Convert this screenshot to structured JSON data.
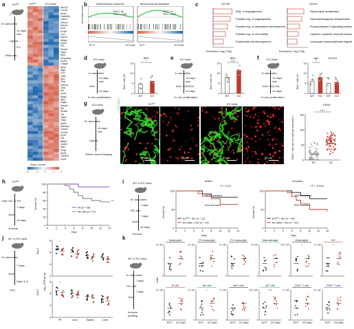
{
  "panels": {
    "a": {
      "label": "a",
      "mouse": "ECᵂᵀ",
      "mouse2": "EC^ΔAlv",
      "steps": [
        "5× tamoxifen",
        "14 days",
        "rest",
        "Ligand",
        "3 h",
        "RNA-seq"
      ],
      "col_headers": [
        "ECᵂᵀ",
        "EC^ΔAlv"
      ],
      "genes": [
        "Abcc12",
        "Cxcl16",
        "Efna1",
        "Gadd45b",
        "Grem1",
        "Hba-a1",
        "Hba-b1",
        "Il1rl1",
        "Kcnk5",
        "Lcn2",
        "Myo10",
        "Nfkbia",
        "Nr4a3",
        "Pf4",
        "Plxna4",
        "Ppbp",
        "Rgs1",
        "Serpina3g",
        "Sox18",
        "Tnfaip3",
        "Aplnr",
        "Aqp1",
        "Ccl2",
        "Cdh5",
        "Egr1",
        "Fosb",
        "Gpnmb",
        "Junb",
        "Kdr",
        "Lyve1",
        "Mmp2",
        "Nid2",
        "Pdgfb",
        "Ramp3",
        "Ret",
        "Slc6a6",
        "Tek",
        "Tgfb2",
        "Thbd",
        "Zfp36",
        "Adamts1",
        "Col4a1",
        "Col4a2",
        "Esm1",
        "Flt1",
        "Igfbp3",
        "Lamb1",
        "Nid1",
        "Plvap",
        "Sparc",
        "Trp53i11",
        "Vwa1"
      ],
      "legend_title": "Row z-score",
      "legend_ticks": [
        "−2",
        "−1",
        "0",
        "1",
        "2"
      ]
    },
    "b": {
      "label": "b",
      "plot1_title": "Inflammatory response",
      "plot1_stats": [
        "NES 1.08",
        "FDR < 0.046"
      ],
      "plot2_title": "Mesenchymal transition",
      "plot2_stats": [
        "NES 1.74",
        "FDR < 0.019"
      ],
      "ylabel": "Enrichment score",
      "x_left": "ECᵂᵀ",
      "x_right": "EC^ΔAlv"
    },
    "c": {
      "label": "c",
      "title1": "GO BP",
      "title2": "KEGG",
      "go_terms": [
        "Reg. of angiogenesis",
        "Positive reg. of angiogenesis",
        "Positive reg. of vasculature development",
        "Positive reg. of cell motility",
        "Endothelial cell development"
      ],
      "kegg_terms": [
        "Glycerolipid metabolism",
        "Glycosaminoglycan biosynthesis",
        "Phospholipase D signalling pathway",
        "Cytokine–cytokine receptor interaction",
        "Leukocyte transendothelial migration"
      ],
      "xlabel": "Enrichment (−log₁₀P adj)",
      "xticks": [
        "0",
        "2",
        "4",
        "6"
      ]
    },
    "d": {
      "label": "d",
      "mouse": "EC^ΔAlv",
      "steps": [
        "1× tamoxifen",
        "14 days",
        "rest",
        "EdU",
        "14 days"
      ],
      "bottom": "In vivo proliferation",
      "title": "BEC",
      "ylabel": "EdU⁺ cells (%)",
      "sig": "*",
      "xcats": [
        "WT",
        "KO"
      ],
      "yticks": [
        "0",
        "5",
        "10",
        "15"
      ]
    },
    "e": {
      "label": "e",
      "mouse": "EC^ΔAlv",
      "steps": [
        "1× tamoxifen",
        "14 days",
        "rest",
        "EdU + VEGFA",
        "14 days"
      ],
      "bottom": "In vivo proliferation",
      "title": "BEC",
      "ylabel": "EdU⁺ cells (%)",
      "sig": "****",
      "xcats": [
        "WT",
        "KO"
      ],
      "yticks": [
        "0",
        "5",
        "10",
        "15"
      ]
    },
    "f": {
      "label": "f",
      "mouse": "EC^ΔAlv",
      "steps": [
        "1× tamoxifen",
        "14 days",
        "rest",
        "EdU + DC101",
        "14 days"
      ],
      "bottom": "In vivo proliferation",
      "title1": "IgG",
      "title2": "DC101",
      "ylabel": "EdU⁺ cells (%)",
      "sig": "*",
      "xcats": [
        "WT",
        "KO",
        "WT",
        "KO"
      ],
      "yticks": [
        "0",
        "5",
        "10",
        "15"
      ]
    },
    "g": {
      "label": "g",
      "mouse": "EC^ΔAlv",
      "steps": [
        "5× tamoxifen",
        "14 days",
        "rest",
        "Ligand"
      ],
      "bottom": "Whole-mount imaging",
      "img_titles": [
        "ECᵂᵀ",
        "EC^ΔAlv"
      ],
      "stain": "CD31 ESM1",
      "scalebars": [
        "50 µm",
        "50 µm",
        "50 µm",
        "50 µm"
      ],
      "chart_title": "ESM1",
      "chart_ylabel": "ESM1⁺ cells per unit vascular area (mm⁻²)",
      "chart_sig": "****",
      "chart_xcats": [
        "WT",
        "KO"
      ]
    },
    "h": {
      "label": "h",
      "mouse": "ECᵂᵀ",
      "steps": [
        "Diet: ISC or PD",
        "7 days",
        "Ypzb",
        "14 days",
        "Survival"
      ],
      "ylabel": "Survival (%)",
      "xlabel": "Days",
      "sig": "**",
      "legend": [
        "PD (n = 28)",
        "ISC diet (n = 27)"
      ],
      "xticks": [
        "0",
        "2",
        "4",
        "6",
        "8",
        "10",
        "12",
        "14"
      ],
      "yticks": [
        "0",
        "20",
        "40",
        "60",
        "80",
        "100"
      ]
    },
    "i": {
      "label": "i",
      "mouse": "WT or EC^ΔAlv",
      "steps": [
        "5× tamoxifen",
        "7 days",
        "ISC diet",
        "7 days",
        "Ypzb",
        "14 days",
        "Survival"
      ],
      "left_title": "Males",
      "left_p": "P = 0.22",
      "left_surv": [
        "10/12 survived",
        "9/14 survived"
      ],
      "left_legend": [
        "ECᵂᵀ + ISC (n = 12)",
        "EC^ΔAlv + ISC (n = 14)"
      ],
      "right_title": "Females",
      "right_p": "*P = 0.046",
      "right_surv": [
        "19/24 survived",
        "9/20 survived"
      ],
      "right_legend": [
        "ECᵂᵀ + ISC (n = 24)",
        "EC^ΔAlv + ISC (n = 20)"
      ],
      "xlabel": "Days",
      "ylabel": "Survival (%)",
      "xticks": [
        "0",
        "2",
        "4",
        "6",
        "8",
        "10",
        "12",
        "14"
      ],
      "yticks": [
        "0",
        "50",
        "100"
      ]
    },
    "j": {
      "label": "j",
      "mouse": "WT or EC^ΔAlv",
      "steps": [
        "5× tamoxifen",
        "7 days",
        "Ypzb",
        "Days 3–5",
        "CFU"
      ],
      "row_labels": [
        "Day 3",
        "Day 5"
      ],
      "ylabel": "log₁₀ (CFU per g)",
      "xcats": [
        "PP",
        "mLN",
        "Spleen",
        "Liver"
      ],
      "sig": "*"
    },
    "k": {
      "label": "k",
      "mouse": "WT or EC^ΔAlv",
      "steps": [
        "5× tamoxifen",
        "7 days",
        "ISC diet",
        "7 days",
        "Ypzb",
        "Immune",
        "profiling"
      ],
      "ylabel": "Cells",
      "xcats": [
        "ECᵂᵀ",
        "EC^ΔAlv"
      ],
      "row1": [
        "Neutrophil",
        "P1 monocyte",
        "P2 monocyte",
        "Macrophage",
        "Eosinophil",
        "DC"
      ],
      "row2": [
        "B cell",
        "NK cell",
        "NKT cell",
        "γδT cell",
        "CD4⁺ T cell",
        "CD8⁺ T cell"
      ],
      "row1_ticks": [
        "8 × 10⁵",
        "3 × 10⁵",
        "5 × 10⁵",
        "3 × 10⁵",
        "2.5 × 10⁴",
        "4 × 10⁵"
      ],
      "row2_ticks": [
        "5 × 10⁵",
        "4 × 10⁵",
        "2 × 10⁵",
        "2.5 × 10⁵",
        "1 × 10⁶",
        "8 × 10⁵"
      ],
      "sigs": {
        "Eosinophil": "*",
        "DC": "*",
        "NK cell": "*",
        "γδT cell": "***"
      }
    }
  },
  "colors": {
    "wt": "#1a1a1a",
    "ko": "#c0392b",
    "green": "#2ecc40",
    "red": "#ff2020",
    "heat_low": "#2166ac",
    "heat_high": "#d6604d"
  },
  "chart_data": [
    {
      "type": "bar",
      "panel": "d",
      "title": "BEC",
      "ylabel": "EdU⁺ cells (%)",
      "categories": [
        "WT",
        "KO"
      ],
      "values": [
        4.5,
        6.0
      ],
      "ylim": [
        0,
        15
      ]
    },
    {
      "type": "bar",
      "panel": "e",
      "title": "BEC",
      "ylabel": "EdU⁺ cells (%)",
      "categories": [
        "WT",
        "KO"
      ],
      "values": [
        8.0,
        11.5
      ],
      "ylim": [
        0,
        15
      ]
    },
    {
      "type": "bar",
      "panel": "f",
      "ylabel": "EdU⁺ cells (%)",
      "categories": [
        "IgG WT",
        "IgG KO",
        "DC101 WT",
        "DC101 KO"
      ],
      "values": [
        6.0,
        8.0,
        5.0,
        5.5
      ],
      "ylim": [
        0,
        15
      ]
    },
    {
      "type": "scatter",
      "panel": "g",
      "title": "ESM1",
      "categories": [
        "WT",
        "KO"
      ],
      "medians": [
        20,
        55
      ]
    },
    {
      "type": "line",
      "panel": "h",
      "xlabel": "Days",
      "ylabel": "Survival (%)",
      "series": [
        {
          "name": "PD (n = 28)",
          "x": [
            0,
            7,
            14
          ],
          "y": [
            100,
            93,
            93
          ]
        },
        {
          "name": "ISC diet (n = 27)",
          "x": [
            0,
            4,
            5,
            6,
            7,
            8,
            10,
            12,
            14
          ],
          "y": [
            100,
            96,
            88,
            80,
            72,
            65,
            60,
            57,
            55
          ]
        }
      ]
    },
    {
      "type": "line",
      "panel": "i-males",
      "xlabel": "Days",
      "ylabel": "Survival (%)",
      "series": [
        {
          "name": "ECᵂᵀ + ISC (n = 12)",
          "x": [
            0,
            6,
            8,
            14
          ],
          "y": [
            100,
            92,
            83,
            83
          ]
        },
        {
          "name": "EC^ΔAlv + ISC (n = 14)",
          "x": [
            0,
            5,
            6,
            8,
            10,
            14
          ],
          "y": [
            100,
            93,
            86,
            79,
            64,
            64
          ]
        }
      ]
    },
    {
      "type": "line",
      "panel": "i-females",
      "xlabel": "Days",
      "ylabel": "Survival (%)",
      "series": [
        {
          "name": "ECᵂᵀ + ISC (n = 24)",
          "x": [
            0,
            6,
            8,
            10,
            14
          ],
          "y": [
            100,
            96,
            88,
            79,
            79
          ]
        },
        {
          "name": "EC^ΔAlv + ISC (n = 20)",
          "x": [
            0,
            5,
            6,
            7,
            8,
            10,
            14
          ],
          "y": [
            100,
            95,
            85,
            75,
            65,
            50,
            45
          ]
        }
      ]
    }
  ]
}
